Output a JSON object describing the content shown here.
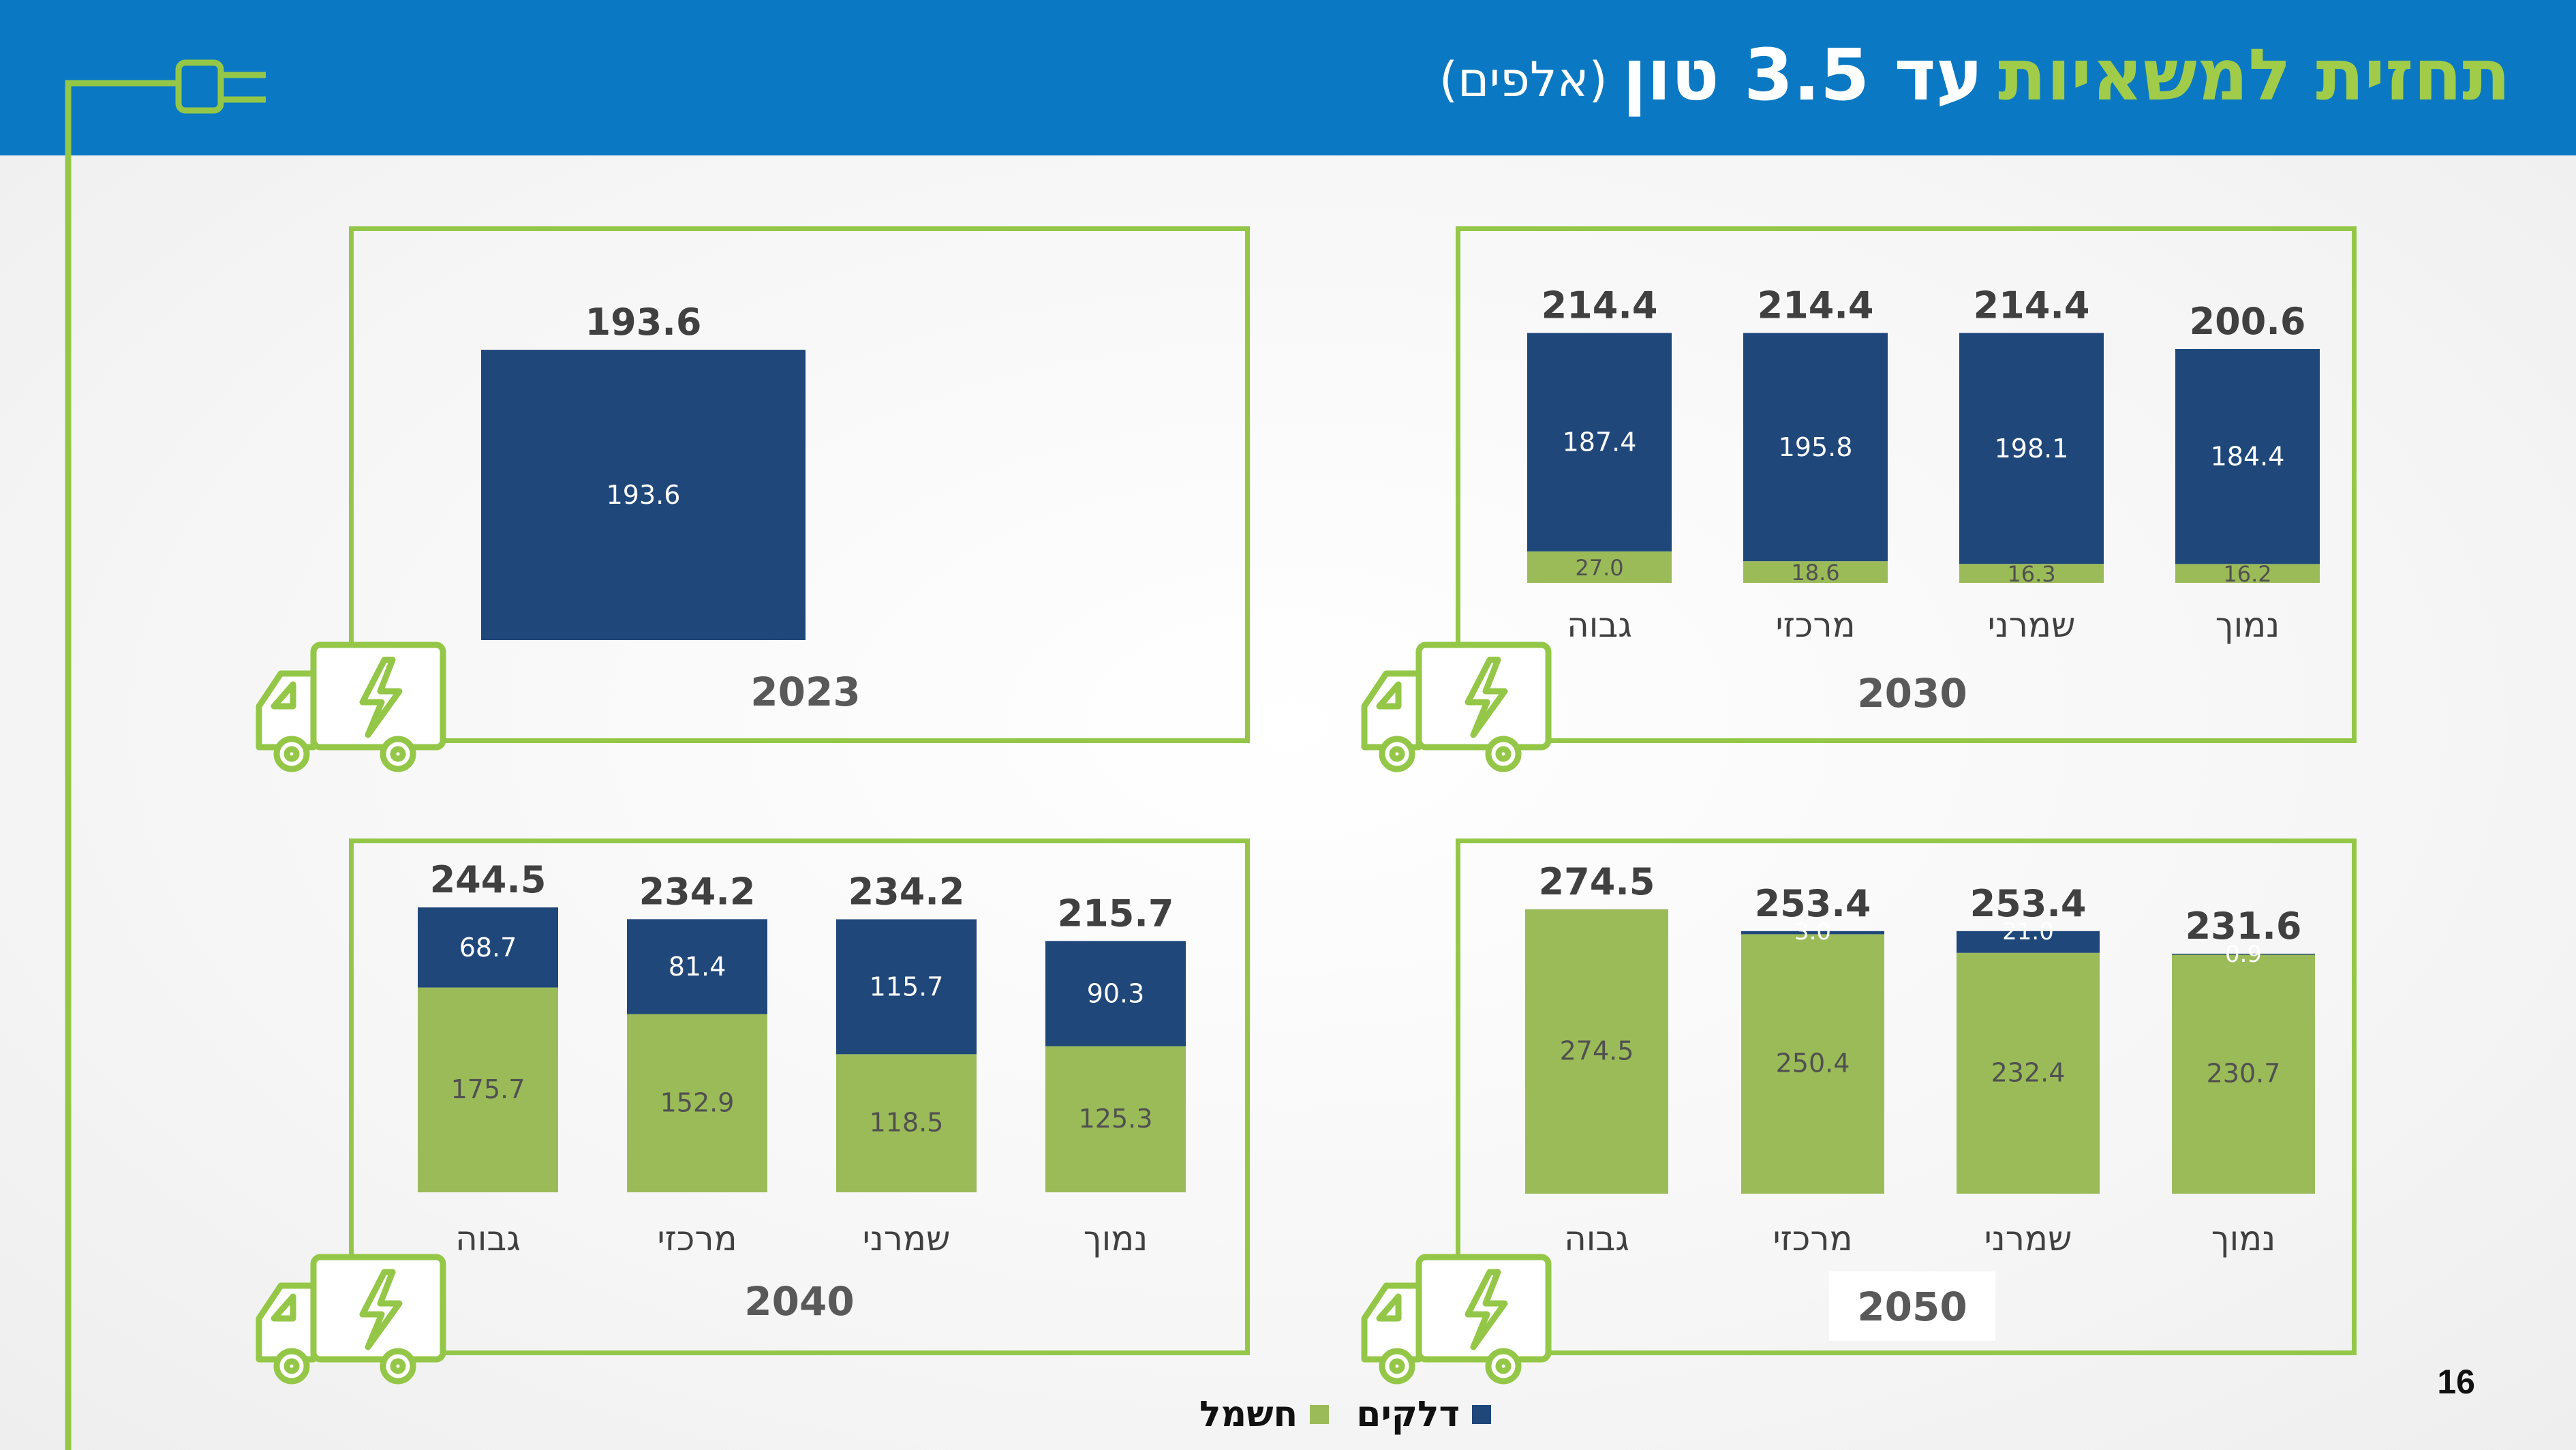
{
  "title": {
    "green_part": "תחזית למשאיות",
    "white_part": "עד 3.5 טון",
    "unit": "(אלפים)"
  },
  "page_number": "16",
  "colors": {
    "header_bg": "#0a78c2",
    "fuel": "#1f477a",
    "electric": "#9bbb59",
    "frame": "#94c748"
  },
  "legend": [
    {
      "name": "דלקים",
      "color": "#1f477a"
    },
    {
      "name": "חשמל",
      "color": "#9bbb59"
    }
  ],
  "icons": [
    "plug-icon",
    "electric-truck-icon"
  ],
  "chart_data": [
    {
      "type": "bar",
      "stacked": true,
      "year": "2023",
      "categories": [
        ""
      ],
      "series": [
        {
          "name": "חשמל",
          "values": [
            0
          ]
        },
        {
          "name": "דלקים",
          "values": [
            193.6
          ]
        }
      ],
      "segment_labels": [
        [
          "",
          "193.6"
        ]
      ],
      "totals": [
        "193.6"
      ]
    },
    {
      "type": "bar",
      "stacked": true,
      "year": "2030",
      "categories": [
        "גבוה",
        "מרכזי",
        "שמרני",
        "נמוך"
      ],
      "series": [
        {
          "name": "חשמל",
          "values": [
            27.0,
            18.6,
            16.3,
            16.2
          ]
        },
        {
          "name": "דלקים",
          "values": [
            187.4,
            195.8,
            198.1,
            184.4
          ]
        }
      ],
      "segment_labels": [
        [
          "27.0",
          "187.4"
        ],
        [
          "18.6",
          "195.8"
        ],
        [
          "16.3",
          "198.1"
        ],
        [
          "16.2",
          "184.4"
        ]
      ],
      "totals": [
        "214.4",
        "214.4",
        "214.4",
        "200.6"
      ]
    },
    {
      "type": "bar",
      "stacked": true,
      "year": "2040",
      "categories": [
        "גבוה",
        "מרכזי",
        "שמרני",
        "נמוך"
      ],
      "series": [
        {
          "name": "חשמל",
          "values": [
            175.7,
            152.9,
            118.5,
            125.3
          ]
        },
        {
          "name": "דלקים",
          "values": [
            68.7,
            81.4,
            115.7,
            90.3
          ]
        }
      ],
      "segment_labels": [
        [
          "175.7",
          "68.7"
        ],
        [
          "152.9",
          "81.4"
        ],
        [
          "118.5",
          "115.7"
        ],
        [
          "125.3",
          "90.3"
        ]
      ],
      "totals": [
        "244.5",
        "234.2",
        "234.2",
        "215.7"
      ]
    },
    {
      "type": "bar",
      "stacked": true,
      "year": "2050",
      "categories": [
        "גבוה",
        "מרכזי",
        "שמרני",
        "נמוך"
      ],
      "series": [
        {
          "name": "חשמל",
          "values": [
            274.5,
            250.4,
            232.4,
            230.7
          ]
        },
        {
          "name": "דלקים",
          "values": [
            0,
            3.0,
            21.0,
            0.9
          ]
        }
      ],
      "segment_labels": [
        [
          "274.5",
          ""
        ],
        [
          "250.4",
          "3.0"
        ],
        [
          "232.4",
          "21.0"
        ],
        [
          "230.7",
          "0.9"
        ]
      ],
      "totals": [
        "274.5",
        "253.4",
        "253.4",
        "231.6"
      ]
    }
  ]
}
